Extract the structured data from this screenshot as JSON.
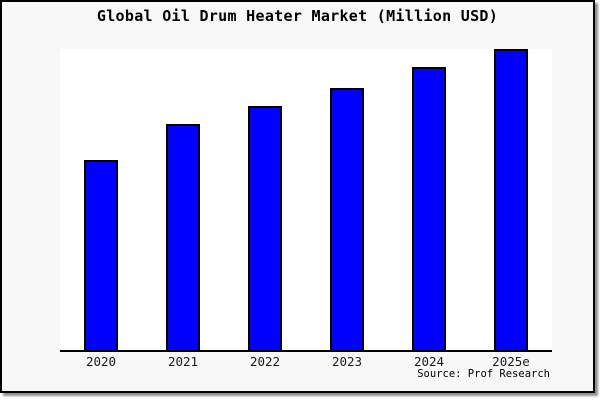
{
  "title": "Global Oil Drum Heater Market (Million USD)",
  "source": {
    "text": "Source: Prof Research"
  },
  "colors": {
    "bar_fill": "#0000FF",
    "bar_border": "#000000",
    "canvas_background": "#F8F8F8",
    "plot_background": "#FFFFFF",
    "frame_border": "#000000",
    "axis_line": "#000000"
  },
  "chart_data": {
    "type": "bar",
    "title": "Global Oil Drum Heater Market (Million USD)",
    "categories": [
      "2020",
      "2021",
      "2022",
      "2023",
      "2024",
      "2025e"
    ],
    "values": [
      63,
      75,
      81,
      87,
      94,
      100
    ],
    "xlabel": "",
    "ylabel": "",
    "ylim": [
      0,
      100
    ],
    "grid": false,
    "legend": "none",
    "bar_color": "#0000FF",
    "values_note": "No y-axis tick labels are visible; values are relative bar heights estimated from pixels with the tallest bar (2025e) scaled to 100."
  }
}
